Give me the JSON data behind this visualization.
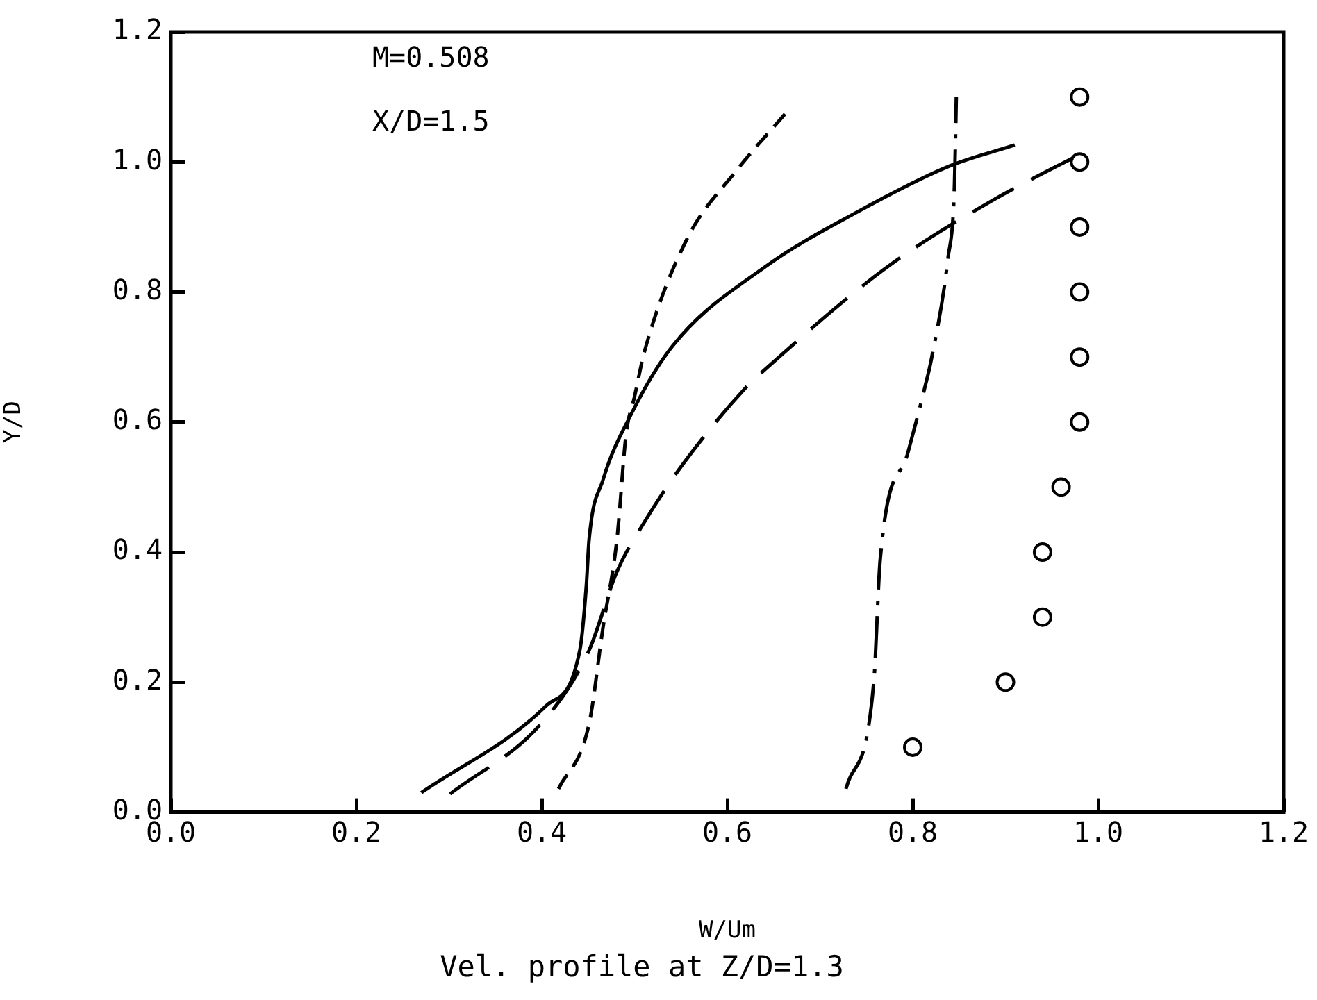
{
  "chart_data": {
    "type": "line",
    "title": "Vel. profile at Z/D=1.3",
    "xlabel": "W/Um",
    "ylabel": "Y/D",
    "annotations": [
      "M=0.508",
      "X/D=1.5"
    ],
    "xlim": [
      0,
      1.2
    ],
    "ylim": [
      0,
      1.2
    ],
    "xticks": [
      {
        "value": 0,
        "label": "0.0"
      },
      {
        "value": 0.2,
        "label": "0.2"
      },
      {
        "value": 0.4,
        "label": "0.4"
      },
      {
        "value": 0.6,
        "label": "0.6"
      },
      {
        "value": 0.8,
        "label": "0.8"
      },
      {
        "value": 1,
        "label": "1.0"
      },
      {
        "value": 1.2,
        "label": "1.2"
      }
    ],
    "yticks": [
      {
        "value": 0,
        "label": "0.0"
      },
      {
        "value": 0.2,
        "label": "0.2"
      },
      {
        "value": 0.4,
        "label": "0.4"
      },
      {
        "value": 0.6,
        "label": "0.6"
      },
      {
        "value": 0.8,
        "label": "0.8"
      },
      {
        "value": 1,
        "label": "1.0"
      },
      {
        "value": 1.2,
        "label": "1.2"
      }
    ],
    "grid": false,
    "legend": false,
    "series": [
      {
        "type": "line",
        "color": "#000000",
        "line_style": "solid",
        "marker": "none",
        "x": [
          0.27,
          0.405,
          0.441,
          0.448,
          0.451,
          0.466,
          0.496,
          0.541,
          0.64,
          0.74,
          0.84,
          0.91
        ],
        "values": [
          0.03,
          0.164,
          0.249,
          0.348,
          0.419,
          0.511,
          0.611,
          0.717,
          0.838,
          0.923,
          0.994,
          1.026
        ]
      },
      {
        "type": "line",
        "color": "#000000",
        "line_style": "longdash",
        "marker": "none",
        "x": [
          0.301,
          0.401,
          0.451,
          0.481,
          0.511,
          0.551,
          0.62,
          0.64,
          0.773,
          0.885,
          0.99
        ],
        "values": [
          0.028,
          0.139,
          0.249,
          0.37,
          0.447,
          0.533,
          0.653,
          0.68,
          0.839,
          0.94,
          1.019
        ]
      },
      {
        "type": "line",
        "color": "#000000",
        "line_style": "dashed",
        "marker": "none",
        "x": [
          0.418,
          0.451,
          0.466,
          0.481,
          0.491,
          0.5,
          0.511,
          0.556,
          0.61,
          0.663
        ],
        "values": [
          0.036,
          0.136,
          0.284,
          0.419,
          0.582,
          0.639,
          0.71,
          0.88,
          0.987,
          1.075
        ]
      },
      {
        "type": "line",
        "color": "#000000",
        "line_style": "dashdot",
        "marker": "none",
        "x": [
          0.728,
          0.758,
          0.765,
          0.795,
          0.813,
          0.82,
          0.838,
          0.845,
          0.847
        ],
        "values": [
          0.036,
          0.2,
          0.39,
          0.554,
          0.653,
          0.696,
          0.852,
          0.965,
          1.1
        ]
      },
      {
        "type": "scatter",
        "color": "#000000",
        "marker": "circle",
        "x": [
          0.8,
          0.9,
          0.94,
          0.94,
          0.96,
          0.98,
          0.98,
          0.98,
          0.98,
          0.98,
          0.98
        ],
        "values": [
          0.1,
          0.2,
          0.3,
          0.4,
          0.5,
          0.6,
          0.7,
          0.8,
          0.9,
          1.0,
          1.1
        ]
      }
    ]
  }
}
